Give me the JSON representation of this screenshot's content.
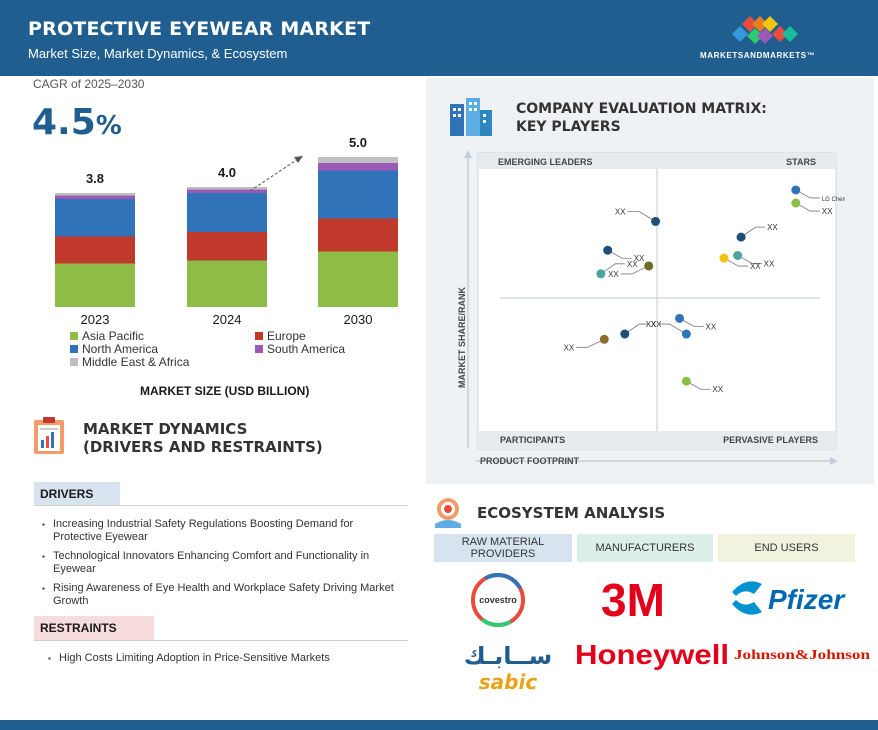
{
  "header": {
    "title": "PROTECTIVE EYEWEAR MARKET",
    "subtitle": "Market Size, Market Dynamics, & Ecosystem",
    "logo_text": "MARKETSANDMARKETS™"
  },
  "cagr": {
    "label": "CAGR of 2025–2030",
    "value": "4.5",
    "unit": "%"
  },
  "chart_data": {
    "type": "bar",
    "stacked": true,
    "categories": [
      "2023",
      "2024",
      "2030"
    ],
    "totals": [
      "3.8",
      "4.0",
      "5.0"
    ],
    "series": [
      {
        "name": "Asia Pacific",
        "color": "#8dbd47",
        "values": [
          1.45,
          1.55,
          1.85
        ]
      },
      {
        "name": "Europe",
        "color": "#c0392b",
        "values": [
          0.9,
          0.95,
          1.1
        ]
      },
      {
        "name": "North America",
        "color": "#3173b9",
        "values": [
          1.25,
          1.3,
          1.6
        ]
      },
      {
        "name": "South America",
        "color": "#9b59b6",
        "values": [
          0.12,
          0.12,
          0.25
        ]
      },
      {
        "name": "Middle East & Africa",
        "color": "#bfbfbf",
        "values": [
          0.08,
          0.08,
          0.2
        ]
      }
    ],
    "xlabel": "MARKET SIZE (USD BILLION)",
    "growth_arrow": true
  },
  "market_dynamics": {
    "title_line1": "MARKET DYNAMICS",
    "title_line2": "(DRIVERS AND RESTRAINTS)",
    "drivers_label": "DRIVERS",
    "drivers": [
      "Increasing Industrial Safety Regulations Boosting Demand for Protective Eyewear",
      "Technological Innovators Enhancing Comfort and Functionality in Eyewear",
      "Rising Awareness of Eye Health and Workplace Safety Driving Market Growth"
    ],
    "restraints_label": "RESTRAINTS",
    "restraints": [
      "High Costs Limiting Adoption in Price-Sensitive Markets"
    ]
  },
  "matrix": {
    "title_line1": "COMPANY EVALUATION MATRIX:",
    "title_line2": "KEY PLAYERS",
    "quadrants": {
      "top_left": "EMERGING LEADERS",
      "top_right": "STARS",
      "bottom_left": "PARTICIPANTS",
      "bottom_right": "PERVASIVE PLAYERS"
    },
    "y_axis": "MARKET SHARE/RANK",
    "x_axis": "PRODUCT FOOTPRINT",
    "points": [
      {
        "label": "XX",
        "color": "#1f4e79",
        "x": 0.49,
        "y": 0.8
      },
      {
        "label": "XX",
        "color": "#1f4e79",
        "x": 0.35,
        "y": 0.69
      },
      {
        "label": "XX",
        "color": "#6b6b2a",
        "x": 0.47,
        "y": 0.63
      },
      {
        "label": "XX",
        "color": "#4ba59e",
        "x": 0.33,
        "y": 0.6
      },
      {
        "label": "LG Chem",
        "color": "#3173b9",
        "x": 0.9,
        "y": 0.92
      },
      {
        "label": "XX",
        "color": "#8dbd47",
        "x": 0.9,
        "y": 0.87
      },
      {
        "label": "XX",
        "color": "#1f4e79",
        "x": 0.74,
        "y": 0.74
      },
      {
        "label": "XX",
        "color": "#4ba59e",
        "x": 0.73,
        "y": 0.67
      },
      {
        "label": "XX",
        "color": "#f1c40f",
        "x": 0.69,
        "y": 0.66
      },
      {
        "label": "XX",
        "color": "#1f4e79",
        "x": 0.4,
        "y": 0.37
      },
      {
        "label": "XX",
        "color": "#8b6d2f",
        "x": 0.34,
        "y": 0.35
      },
      {
        "label": "XX",
        "color": "#3173b9",
        "x": 0.56,
        "y": 0.43
      },
      {
        "label": "XX",
        "color": "#3173b9",
        "x": 0.58,
        "y": 0.37
      },
      {
        "label": "XX",
        "color": "#8dbd47",
        "x": 0.58,
        "y": 0.19
      }
    ]
  },
  "ecosystem": {
    "title": "ECOSYSTEM ANALYSIS",
    "columns": [
      {
        "header": "RAW MATERIAL PROVIDERS",
        "brands": [
          "covestro",
          "sabic"
        ]
      },
      {
        "header": "MANUFACTURERS",
        "brands": [
          "3M",
          "Honeywell"
        ]
      },
      {
        "header": "END USERS",
        "brands": [
          "Pfizer",
          "Johnson&Johnson"
        ]
      }
    ]
  }
}
